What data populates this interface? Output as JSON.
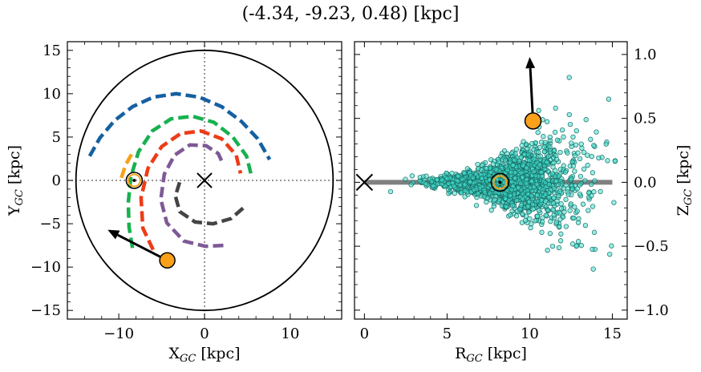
{
  "figure": {
    "title": "(-4.34, -9.23, 0.48) [kpc]"
  },
  "chart_data": [
    {
      "type": "line",
      "panel": "galactic-plane",
      "xlabel": "X_GC [kpc]",
      "ylabel": "Y_GC [kpc]",
      "xlim": [
        -16,
        16
      ],
      "ylim": [
        -16,
        16
      ],
      "xticks": [
        -10,
        0,
        10
      ],
      "yticks": [
        15,
        10,
        5,
        0,
        -5,
        -10,
        -15
      ],
      "disk_radius_kpc": 15,
      "galactic_center": [
        0,
        0
      ],
      "sun_position": [
        -8.2,
        0
      ],
      "object_position": [
        -4.34,
        -9.23
      ],
      "object_arrow_end": [
        -11.3,
        -5.7
      ],
      "spiral_arms": [
        {
          "color": "#1560a0",
          "x": [
            -13.4,
            -12.2,
            -10.5,
            -8.4,
            -6.0,
            -3.3,
            -0.6,
            2.0,
            4.3,
            6.2,
            7.6
          ],
          "y": [
            2.8,
            4.9,
            6.9,
            8.5,
            9.6,
            10.0,
            9.6,
            8.5,
            6.8,
            4.8,
            2.4
          ]
        },
        {
          "color": "#f5a31a",
          "x": [
            -9.7,
            -9.2,
            -8.4
          ],
          "y": [
            0.3,
            1.8,
            3.2
          ]
        },
        {
          "color": "#17b14f",
          "x": [
            -8.4,
            -8.8,
            -8.9,
            -8.6,
            -7.7,
            -6.1,
            -3.9,
            -1.4,
            1.1,
            3.3,
            4.9,
            5.5
          ],
          "y": [
            -7.8,
            -5.4,
            -2.6,
            0.4,
            3.3,
            5.7,
            7.1,
            7.4,
            6.7,
            5.0,
            2.8,
            0.4
          ]
        },
        {
          "color": "#ee3b17",
          "x": [
            -6.0,
            -7.2,
            -7.4,
            -6.6,
            -5.0,
            -2.8,
            -0.4,
            2.0,
            3.7,
            4.2
          ],
          "y": [
            -8.0,
            -5.5,
            -2.0,
            1.4,
            3.9,
            5.4,
            5.7,
            4.8,
            2.9,
            0.8
          ]
        },
        {
          "color": "#7e5996",
          "x": [
            2.2,
            0.1,
            -2.4,
            -4.4,
            -5.1,
            -4.7,
            -3.5,
            -1.7,
            0.2,
            1.6,
            2.2
          ],
          "y": [
            -7.5,
            -7.6,
            -7.0,
            -4.9,
            -2.2,
            0.7,
            2.9,
            4.1,
            4.0,
            3.1,
            1.8
          ]
        },
        {
          "color": "#444444",
          "x": [
            4.5,
            3.1,
            1.0,
            -1.1,
            -2.9,
            -3.4,
            -2.9
          ],
          "y": [
            -3.2,
            -4.4,
            -5.0,
            -4.8,
            -3.6,
            -1.8,
            -0.2
          ]
        }
      ]
    },
    {
      "type": "scatter",
      "panel": "meridional-plane",
      "xlabel": "R_GC [kpc]",
      "ylabel": "Z_GC [kpc]",
      "xlim": [
        -0.6,
        15.9
      ],
      "ylim": [
        -1.07,
        1.1
      ],
      "xticks": [
        0,
        5,
        10,
        15
      ],
      "yticks": [
        1.0,
        0.5,
        0.0,
        -0.5,
        -1.0
      ],
      "y_axis_side": "right",
      "disk_line": {
        "x": [
          0,
          15
        ],
        "y": 0
      },
      "galactic_center": [
        0,
        0
      ],
      "sun_position": [
        8.2,
        0
      ],
      "object_position": [
        10.2,
        0.48
      ],
      "object_arrow_end": [
        10.0,
        0.98
      ],
      "point_color": "#40e0d0",
      "point_count": 2000
    }
  ]
}
